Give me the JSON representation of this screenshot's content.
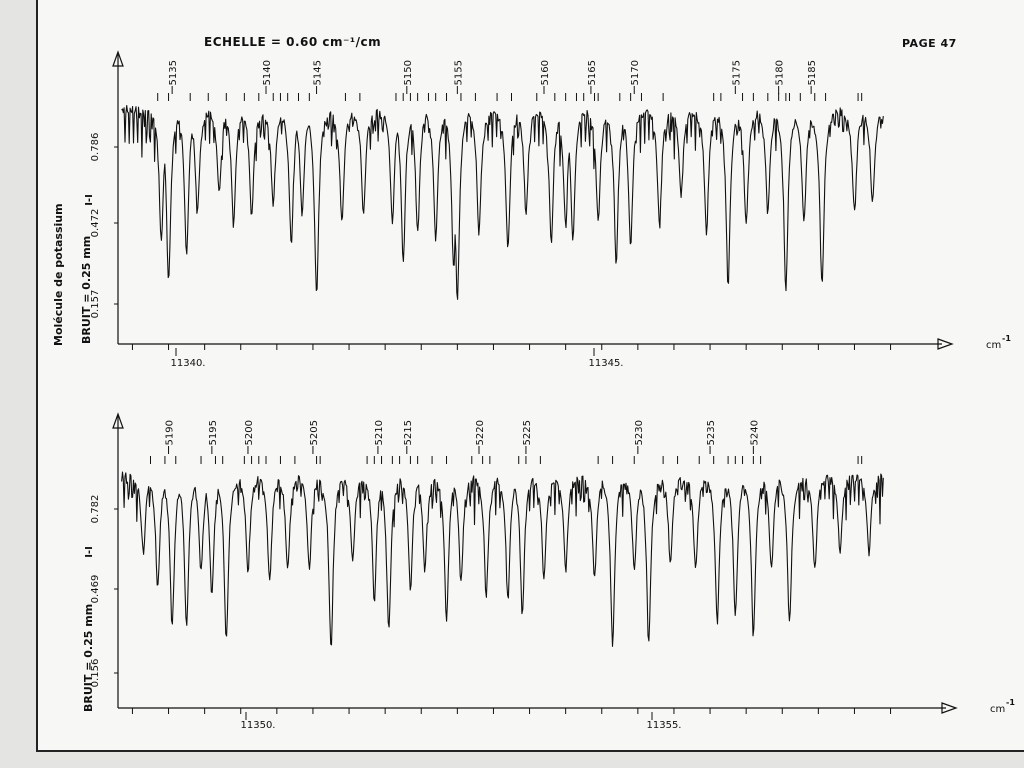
{
  "header": {
    "scale_label": "ECHELLE = 0.60 cm⁻¹/cm",
    "page_number": "PAGE 47"
  },
  "side_labels": {
    "molecule": "Molécule de potassium",
    "noise_top": "BRUIT = 0.25 mm",
    "noise_bottom": "BRUIT = 0.25 mm"
  },
  "colors": {
    "ink": "#111111",
    "paper": "#f7f7f5"
  },
  "chart_data": [
    {
      "type": "line",
      "title": "",
      "xlabel": "cm-1",
      "ylabel": "I-I",
      "x_ticks": [
        "11340.",
        "11345."
      ],
      "y_ticks": [
        "0.786",
        "0.472",
        "0.157"
      ],
      "xlim": [
        11338.8,
        11349.7
      ],
      "ylim": [
        0,
        1
      ],
      "line_numbers": [
        "5135",
        "5140",
        "5145",
        "5150",
        "5155",
        "5160",
        "5165",
        "5170",
        "5175",
        "5180",
        "5185"
      ],
      "line_number_x": [
        11339.55,
        11340.85,
        11341.55,
        11342.8,
        11343.5,
        11344.7,
        11345.35,
        11345.95,
        11347.35,
        11347.95,
        11348.4
      ],
      "absorption_lines_x": [
        11339.35,
        11339.5,
        11339.8,
        11340.05,
        11340.3,
        11340.55,
        11340.75,
        11340.95,
        11341.05,
        11341.15,
        11341.3,
        11341.45,
        11341.95,
        11342.15,
        11342.65,
        11342.75,
        11342.85,
        11342.95,
        11343.1,
        11343.2,
        11343.35,
        11343.55,
        11343.75,
        11344.05,
        11344.25,
        11344.6,
        11344.85,
        11345.0,
        11345.15,
        11345.25,
        11345.4,
        11345.45,
        11345.75,
        11345.9,
        11346.05,
        11346.35,
        11347.05,
        11347.15,
        11347.45,
        11347.6,
        11347.8,
        11347.95,
        11348.05,
        11348.1,
        11348.25,
        11348.45,
        11348.6,
        11349.05,
        11349.1
      ],
      "spectrum_lines": [
        {
          "x": 11339.4,
          "depth": 0.7
        },
        {
          "x": 11339.5,
          "depth": 0.92
        },
        {
          "x": 11339.75,
          "depth": 0.75
        },
        {
          "x": 11339.9,
          "depth": 0.55
        },
        {
          "x": 11340.2,
          "depth": 0.45
        },
        {
          "x": 11340.4,
          "depth": 0.62
        },
        {
          "x": 11340.65,
          "depth": 0.58
        },
        {
          "x": 11340.95,
          "depth": 0.5
        },
        {
          "x": 11341.2,
          "depth": 0.72
        },
        {
          "x": 11341.35,
          "depth": 0.55
        },
        {
          "x": 11341.55,
          "depth": 0.98
        },
        {
          "x": 11341.9,
          "depth": 0.6
        },
        {
          "x": 11342.2,
          "depth": 0.55
        },
        {
          "x": 11342.6,
          "depth": 0.6
        },
        {
          "x": 11342.75,
          "depth": 0.8
        },
        {
          "x": 11342.95,
          "depth": 0.65
        },
        {
          "x": 11343.2,
          "depth": 0.7
        },
        {
          "x": 11343.45,
          "depth": 0.85
        },
        {
          "x": 11343.5,
          "depth": 1.0
        },
        {
          "x": 11343.8,
          "depth": 0.65
        },
        {
          "x": 11344.2,
          "depth": 0.75
        },
        {
          "x": 11344.45,
          "depth": 0.55
        },
        {
          "x": 11344.8,
          "depth": 0.7
        },
        {
          "x": 11345.0,
          "depth": 0.62
        },
        {
          "x": 11345.1,
          "depth": 0.7
        },
        {
          "x": 11345.45,
          "depth": 0.6
        },
        {
          "x": 11345.7,
          "depth": 0.8
        },
        {
          "x": 11345.9,
          "depth": 0.72
        },
        {
          "x": 11346.3,
          "depth": 0.62
        },
        {
          "x": 11346.6,
          "depth": 0.45
        },
        {
          "x": 11346.95,
          "depth": 0.65
        },
        {
          "x": 11347.25,
          "depth": 0.92
        },
        {
          "x": 11347.5,
          "depth": 0.62
        },
        {
          "x": 11347.8,
          "depth": 0.55
        },
        {
          "x": 11348.05,
          "depth": 0.95
        },
        {
          "x": 11348.3,
          "depth": 0.6
        },
        {
          "x": 11348.55,
          "depth": 0.93
        },
        {
          "x": 11349.0,
          "depth": 0.55
        },
        {
          "x": 11349.25,
          "depth": 0.5
        }
      ]
    },
    {
      "type": "line",
      "title": "",
      "xlabel": "cm-1",
      "ylabel": "I-I",
      "x_ticks": [
        "11350.",
        "11355."
      ],
      "y_ticks": [
        "0.782",
        "0.469",
        "0.156"
      ],
      "xlim": [
        11348.8,
        11359.7
      ],
      "ylim": [
        0,
        1
      ],
      "line_numbers": [
        "5190",
        "5195",
        "5200",
        "5205",
        "5210",
        "5215",
        "5220",
        "5225",
        "5230",
        "5235",
        "5240"
      ],
      "line_number_x": [
        11349.5,
        11350.1,
        11350.6,
        11351.5,
        11352.4,
        11352.8,
        11353.8,
        11354.45,
        11356.0,
        11357.0,
        11357.6
      ],
      "absorption_lines_x": [
        11349.25,
        11349.45,
        11349.6,
        11349.95,
        11350.15,
        11350.25,
        11350.55,
        11350.65,
        11350.75,
        11350.85,
        11351.05,
        11351.25,
        11351.55,
        11351.6,
        11352.25,
        11352.35,
        11352.45,
        11352.6,
        11352.7,
        11352.85,
        11352.95,
        11353.15,
        11353.35,
        11353.7,
        11353.85,
        11353.95,
        11354.35,
        11354.45,
        11354.65,
        11355.45,
        11355.65,
        11355.95,
        11356.35,
        11356.55,
        11356.85,
        11357.05,
        11357.25,
        11357.35,
        11357.45,
        11357.6,
        11357.7,
        11359.05,
        11359.1
      ],
      "spectrum_lines": [
        {
          "x": 11349.15,
          "depth": 0.45
        },
        {
          "x": 11349.35,
          "depth": 0.65
        },
        {
          "x": 11349.55,
          "depth": 0.88
        },
        {
          "x": 11349.75,
          "depth": 0.88
        },
        {
          "x": 11349.95,
          "depth": 0.55
        },
        {
          "x": 11350.1,
          "depth": 0.7
        },
        {
          "x": 11350.3,
          "depth": 0.95
        },
        {
          "x": 11350.6,
          "depth": 0.55
        },
        {
          "x": 11350.9,
          "depth": 0.6
        },
        {
          "x": 11351.15,
          "depth": 0.55
        },
        {
          "x": 11351.45,
          "depth": 0.55
        },
        {
          "x": 11351.75,
          "depth": 1.0
        },
        {
          "x": 11352.05,
          "depth": 0.5
        },
        {
          "x": 11352.35,
          "depth": 0.72
        },
        {
          "x": 11352.55,
          "depth": 0.9
        },
        {
          "x": 11352.85,
          "depth": 0.65
        },
        {
          "x": 11353.05,
          "depth": 0.55
        },
        {
          "x": 11353.35,
          "depth": 0.82
        },
        {
          "x": 11353.55,
          "depth": 0.62
        },
        {
          "x": 11353.9,
          "depth": 0.7
        },
        {
          "x": 11354.2,
          "depth": 0.72
        },
        {
          "x": 11354.4,
          "depth": 0.8
        },
        {
          "x": 11354.7,
          "depth": 0.6
        },
        {
          "x": 11355.0,
          "depth": 0.55
        },
        {
          "x": 11355.4,
          "depth": 0.6
        },
        {
          "x": 11355.65,
          "depth": 0.97
        },
        {
          "x": 11355.95,
          "depth": 0.55
        },
        {
          "x": 11356.15,
          "depth": 0.96
        },
        {
          "x": 11356.45,
          "depth": 0.5
        },
        {
          "x": 11356.8,
          "depth": 0.55
        },
        {
          "x": 11357.1,
          "depth": 0.85
        },
        {
          "x": 11357.35,
          "depth": 0.82
        },
        {
          "x": 11357.6,
          "depth": 0.92
        },
        {
          "x": 11357.85,
          "depth": 0.55
        },
        {
          "x": 11358.1,
          "depth": 0.85
        },
        {
          "x": 11358.45,
          "depth": 0.55
        },
        {
          "x": 11358.8,
          "depth": 0.45
        },
        {
          "x": 11359.2,
          "depth": 0.45
        }
      ]
    }
  ]
}
